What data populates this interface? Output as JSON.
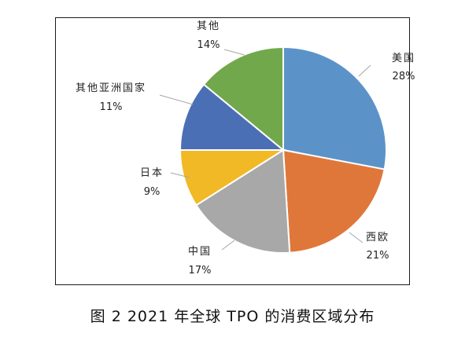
{
  "chart_data": {
    "type": "pie",
    "title": "",
    "categories": [
      "美国",
      "西欧",
      "中国",
      "日本",
      "其他亚洲国家",
      "其他"
    ],
    "values": [
      28,
      21,
      17,
      9,
      11,
      14
    ],
    "percent_labels": [
      "28%",
      "21%",
      "17%",
      "9%",
      "11%",
      "14%"
    ],
    "colors": [
      "#5b93c9",
      "#e0773a",
      "#a8a8a8",
      "#f2b926",
      "#4b6fb5",
      "#72a84c"
    ],
    "legend": "none"
  },
  "figure": {
    "caption": "图 2  2021 年全球 TPO 的消费区域分布"
  }
}
